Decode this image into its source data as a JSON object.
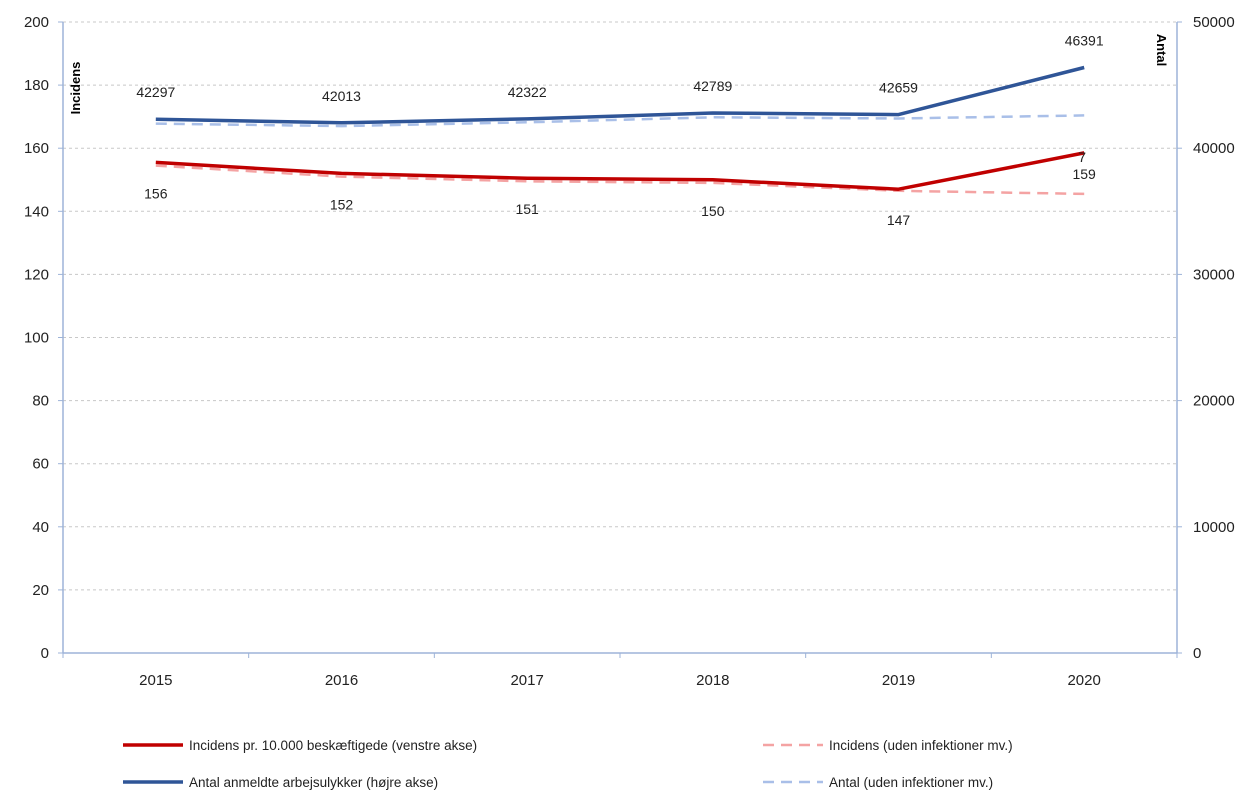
{
  "chart_data": {
    "type": "line",
    "x": [
      "2015",
      "2016",
      "2017",
      "2018",
      "2019",
      "2020"
    ],
    "y_left": {
      "label": "Incidens",
      "ylim": [
        0,
        200
      ],
      "ticks": [
        0,
        20,
        40,
        60,
        80,
        100,
        120,
        140,
        160,
        180,
        200
      ]
    },
    "y_right": {
      "label": "Antal",
      "ylim": [
        0,
        50000
      ],
      "ticks": [
        0,
        10000,
        20000,
        30000,
        40000,
        50000
      ]
    },
    "grid": true,
    "series": [
      {
        "name": "Incidens pr. 10.000 beskæftigede (venstre akse)",
        "axis": "left",
        "style": "solid",
        "color": "#c00000",
        "values": [
          155.5,
          152,
          150.5,
          150,
          147,
          158.5
        ],
        "labels": [
          "156",
          "152",
          "151",
          "150",
          "147",
          "159"
        ]
      },
      {
        "name": "Antal anmeldte arbejsulykker (højre akse)",
        "axis": "right",
        "style": "solid",
        "color": "#2f5597",
        "values": [
          42297,
          42013,
          42322,
          42789,
          42659,
          46391
        ],
        "labels": [
          "42297",
          "42013",
          "42322",
          "42789",
          "42659",
          "46391"
        ]
      },
      {
        "name": "Incidens (uden infektioner mv.)",
        "axis": "left",
        "style": "dashed",
        "color": "#f4a3a3",
        "values": [
          154.5,
          151,
          149.5,
          149,
          146.5,
          145.5
        ]
      },
      {
        "name": "Antal (uden infektioner mv.)",
        "axis": "right",
        "style": "dashed",
        "color": "#a9bfe8",
        "values": [
          41950,
          41750,
          42050,
          42450,
          42350,
          42600
        ]
      }
    ],
    "annotations": [
      {
        "text": "7",
        "x": "2020"
      }
    ],
    "legend": {
      "position": "bottom"
    }
  }
}
